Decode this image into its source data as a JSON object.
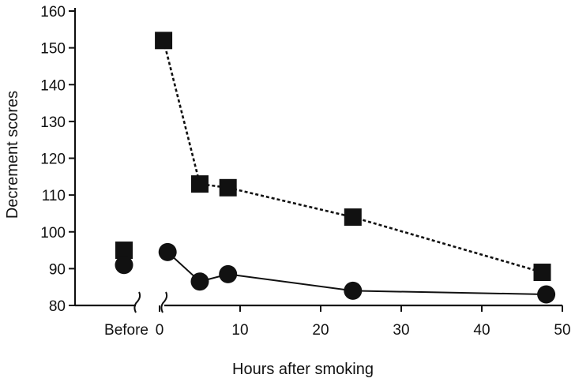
{
  "chart_data": {
    "type": "line",
    "xlabel": "Hours after smoking",
    "ylabel": "Decrement scores",
    "ylim": [
      80,
      160
    ],
    "xlim": [
      0,
      50
    ],
    "yticks": [
      80,
      90,
      100,
      110,
      120,
      130,
      140,
      150,
      160
    ],
    "xticks": [
      0,
      10,
      20,
      30,
      40,
      50
    ],
    "xtick_labels": [
      "0",
      "10",
      "20",
      "30",
      "40",
      "50"
    ],
    "before_label": "Before",
    "axis_break": true,
    "grid": false,
    "series": [
      {
        "marker": "square",
        "line_style": "dotted",
        "color": "#111111",
        "before": 95,
        "x": [
          0.5,
          5,
          8.5,
          24,
          47.5
        ],
        "y": [
          152,
          113,
          112,
          104,
          89
        ]
      },
      {
        "marker": "circle",
        "line_style": "solid",
        "color": "#111111",
        "before": 91,
        "x": [
          1,
          5,
          8.5,
          24,
          48
        ],
        "y": [
          94.5,
          86.5,
          88.5,
          84,
          83
        ]
      }
    ]
  }
}
